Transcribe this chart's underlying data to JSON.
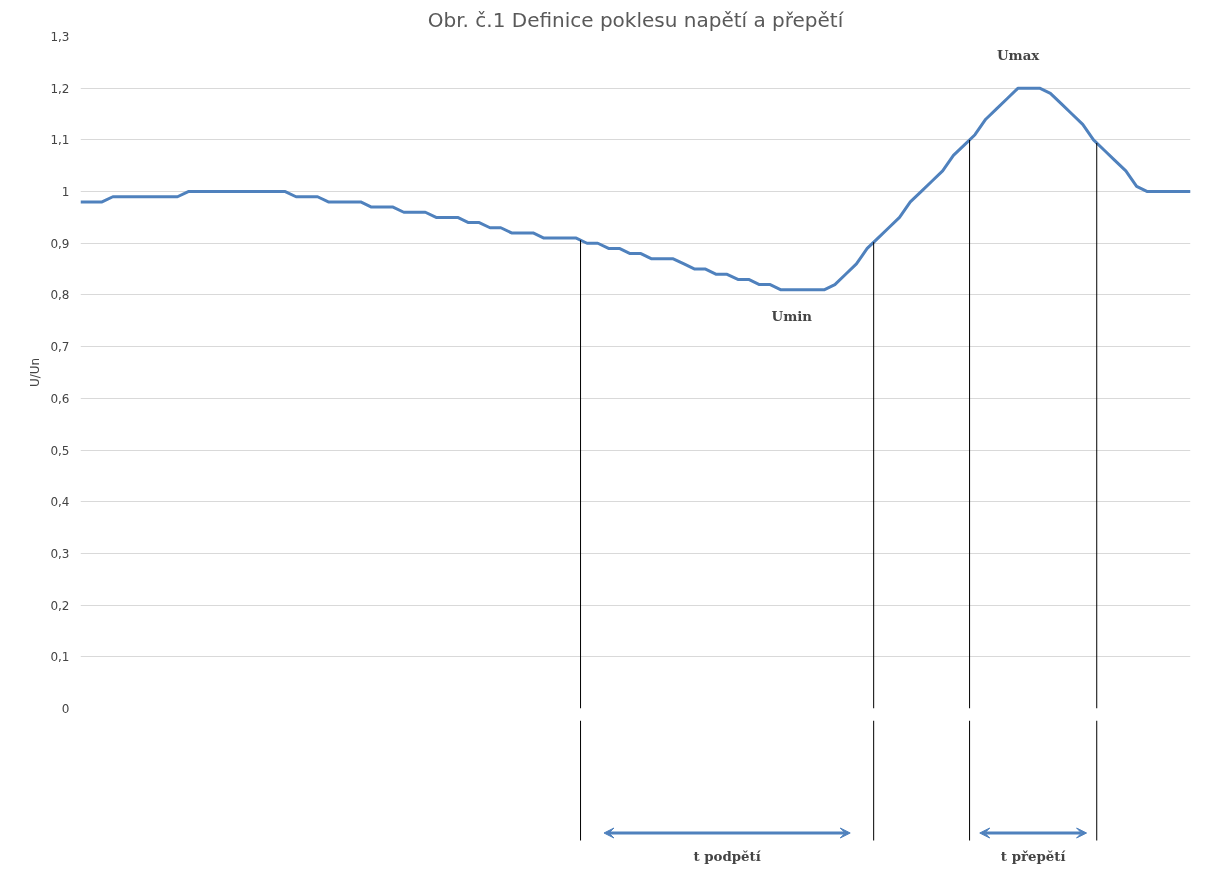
{
  "chart_data": {
    "type": "line",
    "title": "Obr. č.1 Definice poklesu napětí a přepětí",
    "ylabel": "U/Un",
    "categories": [
      null,
      null,
      null,
      null,
      null,
      null,
      null,
      null,
      null,
      null,
      null,
      null,
      null,
      null,
      null,
      null,
      null,
      null,
      null,
      null,
      null,
      null,
      null,
      null,
      null,
      null,
      null,
      null,
      null,
      null,
      null,
      null,
      null,
      null,
      null,
      null,
      null,
      null,
      null,
      null,
      null,
      null,
      null,
      null,
      null,
      null,
      null,
      null,
      null,
      null,
      null,
      null,
      null,
      null,
      null,
      null,
      null,
      null,
      null,
      null,
      null,
      null,
      null,
      null,
      null,
      null,
      null,
      null,
      null,
      null,
      null,
      null,
      null,
      null,
      null,
      null,
      null,
      null,
      null,
      null,
      null,
      null,
      null,
      null,
      null,
      null,
      null,
      null,
      null,
      null,
      null,
      null,
      null,
      null,
      null,
      null,
      null,
      null,
      null,
      null,
      null,
      null,
      null,
      null
    ],
    "series": [
      {
        "color": "#4f81bd",
        "values": [
          0.98,
          0.98,
          0.98,
          0.99,
          0.99,
          0.99,
          0.99,
          0.99,
          0.99,
          0.99,
          1.0,
          1.0,
          1.0,
          1.0,
          1.0,
          1.0,
          1.0,
          1.0,
          1.0,
          1.0,
          0.99,
          0.99,
          0.99,
          0.98,
          0.98,
          0.98,
          0.98,
          0.97,
          0.97,
          0.97,
          0.96,
          0.96,
          0.96,
          0.95,
          0.95,
          0.95,
          0.94,
          0.94,
          0.93,
          0.93,
          0.92,
          0.92,
          0.92,
          0.91,
          0.91,
          0.91,
          0.91,
          0.9,
          0.9,
          0.89,
          0.89,
          0.88,
          0.88,
          0.87,
          0.87,
          0.87,
          0.86,
          0.85,
          0.85,
          0.84,
          0.84,
          0.83,
          0.83,
          0.82,
          0.82,
          0.81,
          0.81,
          0.81,
          0.81,
          0.81,
          0.82,
          0.84,
          0.86,
          0.89,
          0.91,
          0.93,
          0.95,
          0.98,
          1.0,
          1.02,
          1.04,
          1.07,
          1.09,
          1.11,
          1.14,
          1.16,
          1.18,
          1.2,
          1.2,
          1.2,
          1.19,
          1.17,
          1.15,
          1.13,
          1.1,
          1.08,
          1.06,
          1.04,
          1.01,
          1.0,
          1.0,
          1.0,
          1.0,
          1.0
        ]
      }
    ],
    "ylim": [
      0,
      1.3
    ],
    "yticks": [
      0,
      {
        "value": 0.1,
        "label": "0,1"
      },
      {
        "value": 0.2,
        "label": "0,2"
      },
      {
        "value": 0.3,
        "label": "0,3"
      },
      {
        "value": 0.4,
        "label": "0,4"
      },
      {
        "value": 0.5,
        "label": "0,5"
      },
      {
        "value": 0.6,
        "label": "0,6"
      },
      {
        "value": 0.7,
        "label": "0,7"
      },
      {
        "value": 0.8,
        "label": "0,8"
      },
      {
        "value": 0.9,
        "label": "0,9"
      },
      1,
      {
        "value": 1.1,
        "label": "1,1"
      },
      {
        "value": 1.2,
        "label": "1,2"
      },
      {
        "value": 1.3,
        "label": "1,3"
      }
    ],
    "tick_labels": "y",
    "grid": "y",
    "marker": "none",
    "line_style": "solid",
    "annotations": [
      "Umin",
      "Umax",
      "t podpětí",
      "t přepětí"
    ]
  }
}
